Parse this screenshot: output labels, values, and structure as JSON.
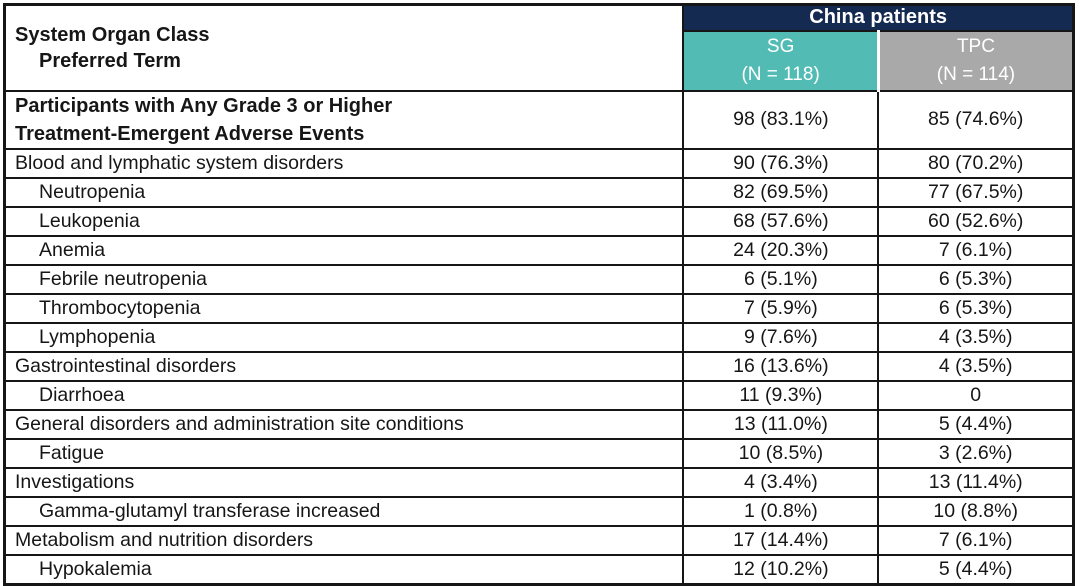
{
  "colors": {
    "header_navy": "#152a50",
    "header_teal": "#52bcb4",
    "header_gray": "#a9a9a9",
    "header_text": "#ffffff",
    "body_text": "#161616",
    "border": "#161616"
  },
  "table": {
    "corner_header": {
      "line1": "System Organ Class",
      "line2": "Preferred Term"
    },
    "span_header": "China patients",
    "columns": [
      {
        "id": "sg",
        "line1": "SG",
        "line2": "(N = 118)"
      },
      {
        "id": "tpc",
        "line1": "TPC",
        "line2": "(N = 114)"
      }
    ],
    "rows": [
      {
        "label": "Participants with Any Grade 3 or Higher\nTreatment-Emergent Adverse Events",
        "sg": "98 (83.1%)",
        "tpc": "85 (74.6%)",
        "bold": true,
        "indent": false,
        "tall": true
      },
      {
        "label": "Blood and lymphatic system disorders",
        "sg": "90 (76.3%)",
        "tpc": "80 (70.2%)",
        "bold": false,
        "indent": false,
        "tall": false
      },
      {
        "label": "Neutropenia",
        "sg": "82 (69.5%)",
        "tpc": "77 (67.5%)",
        "bold": false,
        "indent": true,
        "tall": false
      },
      {
        "label": "Leukopenia",
        "sg": "68 (57.6%)",
        "tpc": "60 (52.6%)",
        "bold": false,
        "indent": true,
        "tall": false
      },
      {
        "label": "Anemia",
        "sg": "24 (20.3%)",
        "tpc": "7 (6.1%)",
        "bold": false,
        "indent": true,
        "tall": false
      },
      {
        "label": "Febrile neutropenia",
        "sg": "6 (5.1%)",
        "tpc": "6 (5.3%)",
        "bold": false,
        "indent": true,
        "tall": false
      },
      {
        "label": "Thrombocytopenia",
        "sg": "7 (5.9%)",
        "tpc": "6 (5.3%)",
        "bold": false,
        "indent": true,
        "tall": false
      },
      {
        "label": "Lymphopenia",
        "sg": "9 (7.6%)",
        "tpc": "4 (3.5%)",
        "bold": false,
        "indent": true,
        "tall": false
      },
      {
        "label": "Gastrointestinal disorders",
        "sg": "16 (13.6%)",
        "tpc": "4 (3.5%)",
        "bold": false,
        "indent": false,
        "tall": false
      },
      {
        "label": "Diarrhoea",
        "sg": "11 (9.3%)",
        "tpc": "0",
        "bold": false,
        "indent": true,
        "tall": false
      },
      {
        "label": "General disorders and administration site conditions",
        "sg": "13 (11.0%)",
        "tpc": "5 (4.4%)",
        "bold": false,
        "indent": false,
        "tall": false
      },
      {
        "label": "Fatigue",
        "sg": "10 (8.5%)",
        "tpc": "3 (2.6%)",
        "bold": false,
        "indent": true,
        "tall": false
      },
      {
        "label": "Investigations",
        "sg": "4 (3.4%)",
        "tpc": "13 (11.4%)",
        "bold": false,
        "indent": false,
        "tall": false
      },
      {
        "label": "Gamma-glutamyl transferase increased",
        "sg": "1 (0.8%)",
        "tpc": "10 (8.8%)",
        "bold": false,
        "indent": true,
        "tall": false
      },
      {
        "label": "Metabolism and nutrition disorders",
        "sg": "17 (14.4%)",
        "tpc": "7 (6.1%)",
        "bold": false,
        "indent": false,
        "tall": false
      },
      {
        "label": "Hypokalemia",
        "sg": "12 (10.2%)",
        "tpc": "5 (4.4%)",
        "bold": false,
        "indent": true,
        "tall": false
      }
    ]
  }
}
